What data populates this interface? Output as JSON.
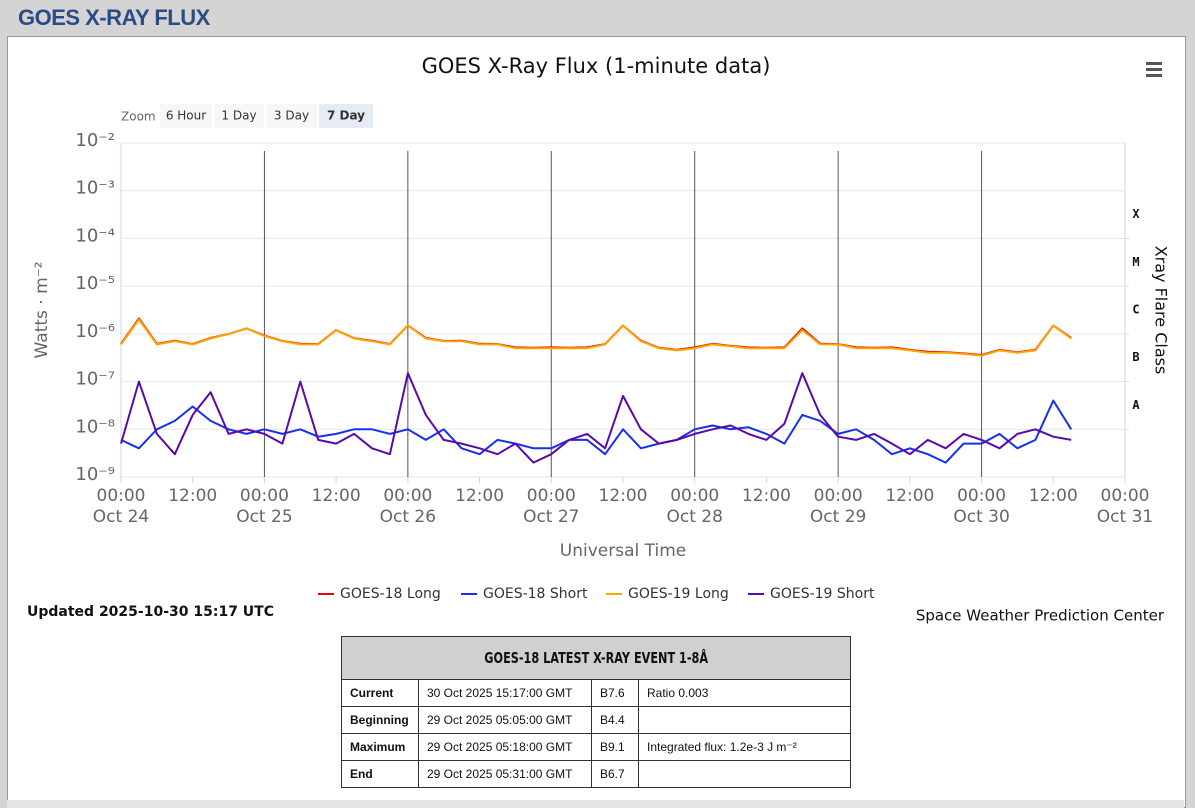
{
  "header": {
    "title": "GOES X-RAY FLUX"
  },
  "chart_data": {
    "type": "line",
    "title": "GOES X-Ray Flux (1-minute data)",
    "zoom": {
      "label": "Zoom",
      "buttons": [
        "6 Hour",
        "1 Day",
        "3 Day",
        "7 Day"
      ],
      "selected": 3
    },
    "ylabel": "Watts · m⁻²",
    "xlabel": "Universal Time",
    "y2label": "Xray Flare Class",
    "yscale": "log",
    "grid": true,
    "legend": "bottom",
    "ylim": [
      1e-09,
      0.01
    ],
    "yticks": [
      {
        "value": 1e-09,
        "label": "10⁻⁹"
      },
      {
        "value": 1e-08,
        "label": "10⁻⁸"
      },
      {
        "value": 1e-07,
        "label": "10⁻⁷"
      },
      {
        "value": 1e-06,
        "label": "10⁻⁶"
      },
      {
        "value": 1e-05,
        "label": "10⁻⁵"
      },
      {
        "value": 0.0001,
        "label": "10⁻⁴"
      },
      {
        "value": 0.001,
        "label": "10⁻³"
      },
      {
        "value": 0.01,
        "label": "10⁻²"
      }
    ],
    "y2lim": [
      1e-09,
      0.01
    ],
    "y2ticks": [
      {
        "value": 1e-08,
        "label": "A"
      },
      {
        "value": 1e-07,
        "label": "B"
      },
      {
        "value": 1e-06,
        "label": "C"
      },
      {
        "value": 1e-05,
        "label": "M"
      },
      {
        "value": 0.0001,
        "label": "X"
      }
    ],
    "xlim": [
      "Oct 24 00:00",
      "Oct 31 00:00"
    ],
    "xticks": [
      {
        "value": "Oct 24 00:00",
        "label": "00:00",
        "date": "Oct 24"
      },
      {
        "value": "Oct 24 12:00",
        "label": "12:00"
      },
      {
        "value": "Oct 25 00:00",
        "label": "00:00",
        "date": "Oct 25"
      },
      {
        "value": "Oct 25 12:00",
        "label": "12:00"
      },
      {
        "value": "Oct 26 00:00",
        "label": "00:00",
        "date": "Oct 26"
      },
      {
        "value": "Oct 26 12:00",
        "label": "12:00"
      },
      {
        "value": "Oct 27 00:00",
        "label": "00:00",
        "date": "Oct 27"
      },
      {
        "value": "Oct 27 12:00",
        "label": "12:00"
      },
      {
        "value": "Oct 28 00:00",
        "label": "00:00",
        "date": "Oct 28"
      },
      {
        "value": "Oct 28 12:00",
        "label": "12:00"
      },
      {
        "value": "Oct 29 00:00",
        "label": "00:00",
        "date": "Oct 29"
      },
      {
        "value": "Oct 29 12:00",
        "label": "12:00"
      },
      {
        "value": "Oct 30 00:00",
        "label": "00:00",
        "date": "Oct 30"
      },
      {
        "value": "Oct 30 12:00",
        "label": "12:00"
      },
      {
        "value": "Oct 31 00:00",
        "label": "00:00",
        "date": "Oct 31"
      }
    ],
    "x": [
      "Oct 24 00:00",
      "Oct 24 03:00",
      "Oct 24 06:00",
      "Oct 24 09:00",
      "Oct 24 12:00",
      "Oct 24 15:00",
      "Oct 24 18:00",
      "Oct 24 21:00",
      "Oct 25 00:00",
      "Oct 25 03:00",
      "Oct 25 06:00",
      "Oct 25 09:00",
      "Oct 25 12:00",
      "Oct 25 15:00",
      "Oct 25 18:00",
      "Oct 25 21:00",
      "Oct 26 00:00",
      "Oct 26 03:00",
      "Oct 26 06:00",
      "Oct 26 09:00",
      "Oct 26 12:00",
      "Oct 26 15:00",
      "Oct 26 18:00",
      "Oct 26 21:00",
      "Oct 27 00:00",
      "Oct 27 03:00",
      "Oct 27 06:00",
      "Oct 27 09:00",
      "Oct 27 12:00",
      "Oct 27 15:00",
      "Oct 27 18:00",
      "Oct 27 21:00",
      "Oct 28 00:00",
      "Oct 28 03:00",
      "Oct 28 06:00",
      "Oct 28 09:00",
      "Oct 28 12:00",
      "Oct 28 15:00",
      "Oct 28 18:00",
      "Oct 28 21:00",
      "Oct 29 00:00",
      "Oct 29 03:00",
      "Oct 29 06:00",
      "Oct 29 09:00",
      "Oct 29 12:00",
      "Oct 29 15:00",
      "Oct 29 18:00",
      "Oct 29 21:00",
      "Oct 30 00:00",
      "Oct 30 03:00",
      "Oct 30 06:00",
      "Oct 30 09:00",
      "Oct 30 12:00",
      "Oct 30 15:00"
    ],
    "series": [
      {
        "name": "GOES-18 Long",
        "color": "#ee0000",
        "values": [
          6.2e-07,
          2.1e-06,
          6.2e-07,
          7.2e-07,
          6.1e-07,
          8.2e-07,
          1e-06,
          1.3e-06,
          9.2e-07,
          7.1e-07,
          6.2e-07,
          6.1e-07,
          1.2e-06,
          8.1e-07,
          7.2e-07,
          6.1e-07,
          1.5e-06,
          8.2e-07,
          7.1e-07,
          7.2e-07,
          6.2e-07,
          6.1e-07,
          5.2e-07,
          5.1e-07,
          5.2e-07,
          5.1e-07,
          5.2e-07,
          6.1e-07,
          1.5e-06,
          7.2e-07,
          5.1e-07,
          4.6e-07,
          5.2e-07,
          6.2e-07,
          5.6e-07,
          5.2e-07,
          5.1e-07,
          5.2e-07,
          1.3e-06,
          6.2e-07,
          6.1e-07,
          5.2e-07,
          5.1e-07,
          5.2e-07,
          4.6e-07,
          4.2e-07,
          4.1e-07,
          3.9e-07,
          3.6e-07,
          4.6e-07,
          4.1e-07,
          4.6e-07,
          1.5e-06,
          8.2e-07
        ]
      },
      {
        "name": "GOES-18 Short",
        "color": "#1530f0",
        "values": [
          6e-09,
          4e-09,
          1e-08,
          1.5e-08,
          3e-08,
          1.5e-08,
          1e-08,
          8e-09,
          1e-08,
          8e-09,
          1e-08,
          7e-09,
          8e-09,
          1e-08,
          1e-08,
          8e-09,
          1e-08,
          6e-09,
          1e-08,
          4e-09,
          3e-09,
          6e-09,
          5e-09,
          4e-09,
          4e-09,
          6e-09,
          6e-09,
          3e-09,
          1e-08,
          4e-09,
          5e-09,
          6e-09,
          1e-08,
          1.2e-08,
          1e-08,
          1.1e-08,
          8e-09,
          5e-09,
          2e-08,
          1.5e-08,
          8e-09,
          1e-08,
          6e-09,
          3e-09,
          4e-09,
          3e-09,
          2e-09,
          5e-09,
          5e-09,
          8e-09,
          4e-09,
          6e-09,
          4e-08,
          1e-08
        ]
      },
      {
        "name": "GOES-19 Long",
        "color": "#ffa500",
        "values": [
          6e-07,
          2e-06,
          6e-07,
          7e-07,
          6e-07,
          8e-07,
          1e-06,
          1.3e-06,
          9e-07,
          7e-07,
          6e-07,
          6e-07,
          1.2e-06,
          8e-07,
          7e-07,
          6e-07,
          1.5e-06,
          8e-07,
          7e-07,
          7e-07,
          6e-07,
          6e-07,
          5e-07,
          5e-07,
          5e-07,
          5e-07,
          5e-07,
          6e-07,
          1.5e-06,
          7e-07,
          5e-07,
          4.5e-07,
          5e-07,
          6e-07,
          5.5e-07,
          5e-07,
          5e-07,
          5e-07,
          1.2e-06,
          6e-07,
          6e-07,
          5e-07,
          5e-07,
          5e-07,
          4.5e-07,
          4e-07,
          4e-07,
          3.8e-07,
          3.5e-07,
          4.5e-07,
          4e-07,
          4.5e-07,
          1.5e-06,
          8e-07
        ]
      },
      {
        "name": "GOES-19 Short",
        "color": "#5a0aa8",
        "values": [
          5e-09,
          1e-07,
          8e-09,
          3e-09,
          2e-08,
          6e-08,
          8e-09,
          1e-08,
          8e-09,
          5e-09,
          1e-07,
          6e-09,
          5e-09,
          8e-09,
          4e-09,
          3e-09,
          1.5e-07,
          2e-08,
          6e-09,
          5e-09,
          4e-09,
          3e-09,
          5e-09,
          2e-09,
          3e-09,
          6e-09,
          8e-09,
          4e-09,
          5e-08,
          1e-08,
          5e-09,
          6e-09,
          8e-09,
          1e-08,
          1.2e-08,
          8e-09,
          6e-09,
          1.3e-08,
          1.5e-07,
          2e-08,
          7e-09,
          6e-09,
          8e-09,
          5e-09,
          3e-09,
          6e-09,
          4e-09,
          8e-09,
          6e-09,
          4e-09,
          8e-09,
          1e-08,
          7e-09,
          6e-09
        ]
      }
    ],
    "updated": "Updated 2025-10-30 15:17 UTC",
    "credit": "Space Weather Prediction Center"
  },
  "table": {
    "title": "GOES-18 LATEST X-RAY EVENT 1-8Å",
    "rows": [
      [
        "Current",
        "30 Oct 2025 15:17:00 GMT",
        "B7.6",
        "Ratio 0.003"
      ],
      [
        "Beginning",
        "29 Oct 2025 05:05:00 GMT",
        "B4.4"
      ],
      [
        "Maximum",
        "29 Oct 2025 05:18:00 GMT",
        "B9.1",
        "Integrated flux: 1.2e-3 J m⁻²"
      ],
      [
        "End",
        "29 Oct 2025 05:31:00 GMT",
        "B6.7"
      ]
    ]
  }
}
